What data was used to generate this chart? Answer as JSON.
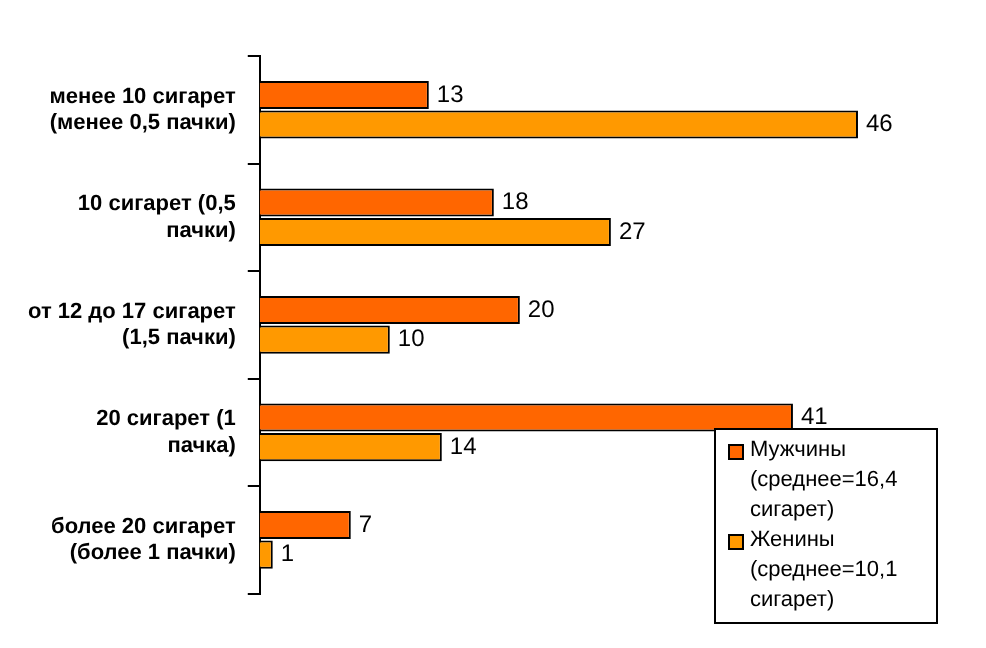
{
  "chart_data": {
    "type": "bar",
    "orientation": "horizontal",
    "categories": [
      "менее 10 сигарет (менее 0,5 пачки)",
      "10 сигарет (0,5 пачки)",
      "от 12 до 17 сигарет (1,5 пачки)",
      "20 сигарет (1 пачка)",
      "более 20 сигарет (более 1 пачки)"
    ],
    "series": [
      {
        "name": "Мужчины (среднее=16,4 сигарет)",
        "color": "#ff6600",
        "values": [
          13,
          18,
          20,
          41,
          7
        ]
      },
      {
        "name": "Женины (среднее=10,1 сигарет)",
        "color": "#ff9900",
        "values": [
          46,
          27,
          10,
          14,
          1
        ]
      }
    ],
    "data_labels": true,
    "legend": "bottom right"
  }
}
